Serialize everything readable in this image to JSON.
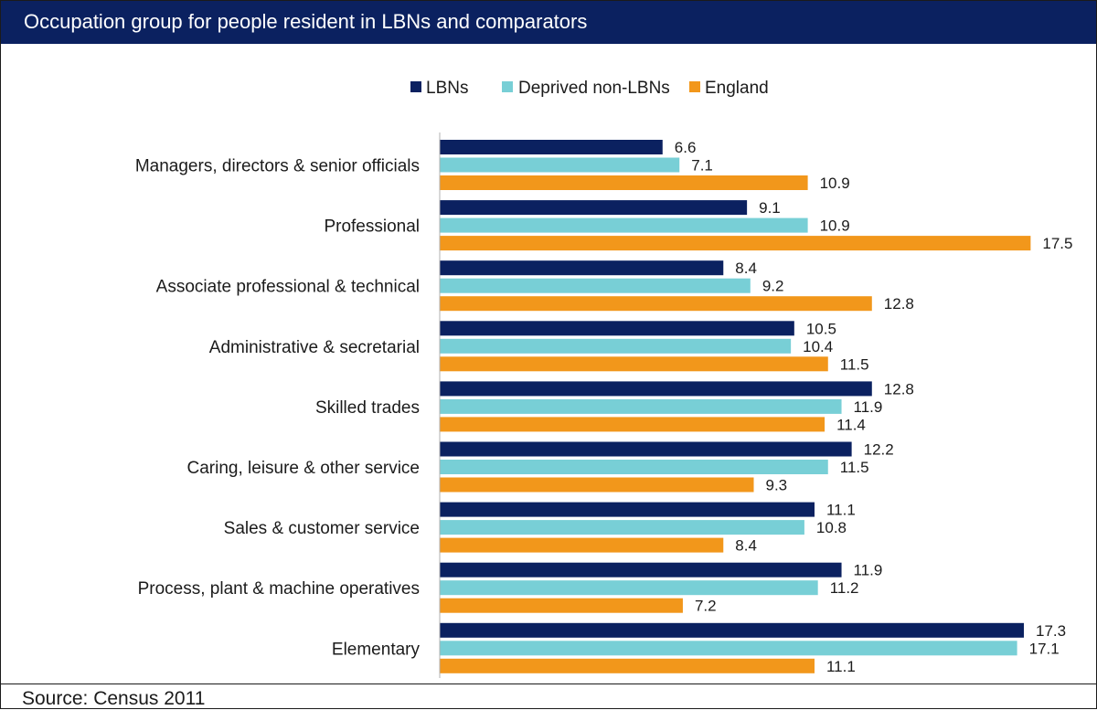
{
  "title": "Occupation group for people resident in LBNs and comparators",
  "source": "Source: Census 2011",
  "chart_data": {
    "type": "bar",
    "orientation": "horizontal",
    "title": "Occupation group for people resident in LBNs and comparators",
    "xlabel": "",
    "ylabel": "",
    "grid": false,
    "legend_position": "top",
    "categories": [
      "Managers, directors & senior officials",
      "Professional",
      "Associate professional & technical",
      "Administrative & secretarial",
      "Skilled trades",
      "Caring, leisure & other service",
      "Sales & customer service",
      "Process, plant & machine operatives",
      "Elementary"
    ],
    "series": [
      {
        "name": "LBNs",
        "color": "#0b2160",
        "values": [
          6.6,
          9.1,
          8.4,
          10.5,
          12.8,
          12.2,
          11.1,
          11.9,
          17.3
        ]
      },
      {
        "name": "Deprived non-LBNs",
        "color": "#78cfd6",
        "values": [
          7.1,
          10.9,
          9.2,
          10.4,
          11.9,
          11.5,
          10.8,
          11.2,
          17.1
        ]
      },
      {
        "name": "England",
        "color": "#f2971b",
        "values": [
          10.9,
          17.5,
          12.8,
          11.5,
          11.4,
          9.3,
          8.4,
          7.2,
          11.1
        ]
      }
    ]
  }
}
